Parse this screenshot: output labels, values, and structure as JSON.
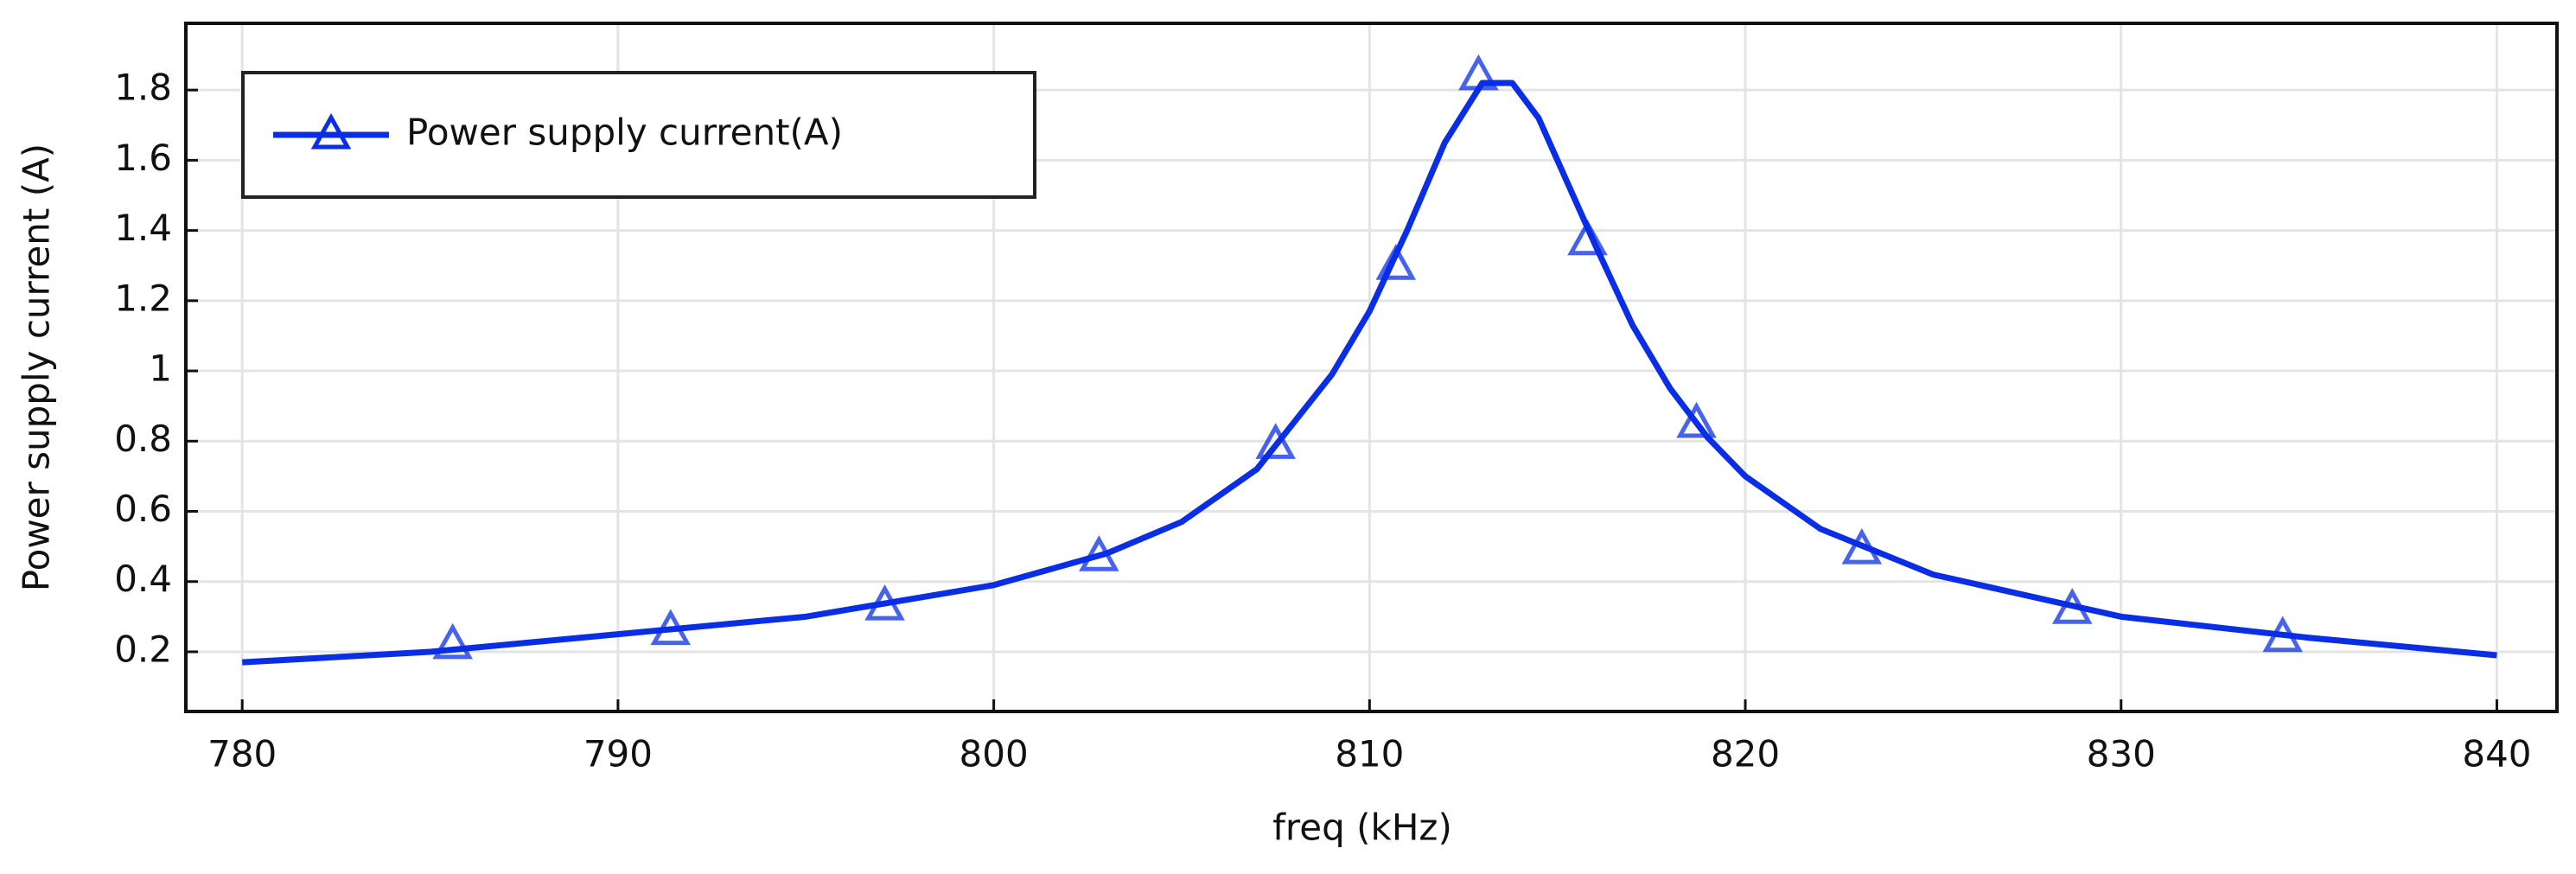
{
  "chart_data": {
    "type": "line",
    "x_label": "freq (kHz)",
    "y_label": "Power supply current (A)",
    "xlim": [
      778.5,
      841.6
    ],
    "ylim": [
      0.03,
      1.99
    ],
    "xticks": [
      780,
      790,
      800,
      810,
      820,
      830,
      840
    ],
    "yticks": [
      0.2,
      0.4,
      0.6,
      0.8,
      1,
      1.2,
      1.4,
      1.6,
      1.8
    ],
    "grid": true,
    "legend": "upper-left",
    "series": [
      {
        "name": "Power supply current(A)",
        "color": "#0a2ee6",
        "marker": "triangle",
        "x": [
          780,
          785,
          790,
          795,
          800,
          803,
          805,
          807,
          809,
          810,
          811,
          812,
          813,
          813.8,
          814.5,
          815,
          816,
          817,
          818,
          819,
          820,
          822,
          825,
          830,
          835,
          840
        ],
        "values": [
          0.17,
          0.2,
          0.25,
          0.3,
          0.39,
          0.48,
          0.57,
          0.72,
          0.99,
          1.17,
          1.4,
          1.65,
          1.82,
          1.82,
          1.72,
          1.6,
          1.36,
          1.13,
          0.95,
          0.81,
          0.7,
          0.55,
          0.42,
          0.3,
          0.24,
          0.19
        ],
        "markers": {
          "x": [
            785.6,
            791.4,
            797.1,
            802.8,
            807.5,
            810.7,
            812.9,
            815.8,
            818.7,
            823.1,
            828.7,
            834.3
          ],
          "values": [
            0.22,
            0.26,
            0.33,
            0.47,
            0.79,
            1.3,
            1.84,
            1.37,
            0.85,
            0.49,
            0.32,
            0.24
          ]
        }
      }
    ]
  }
}
